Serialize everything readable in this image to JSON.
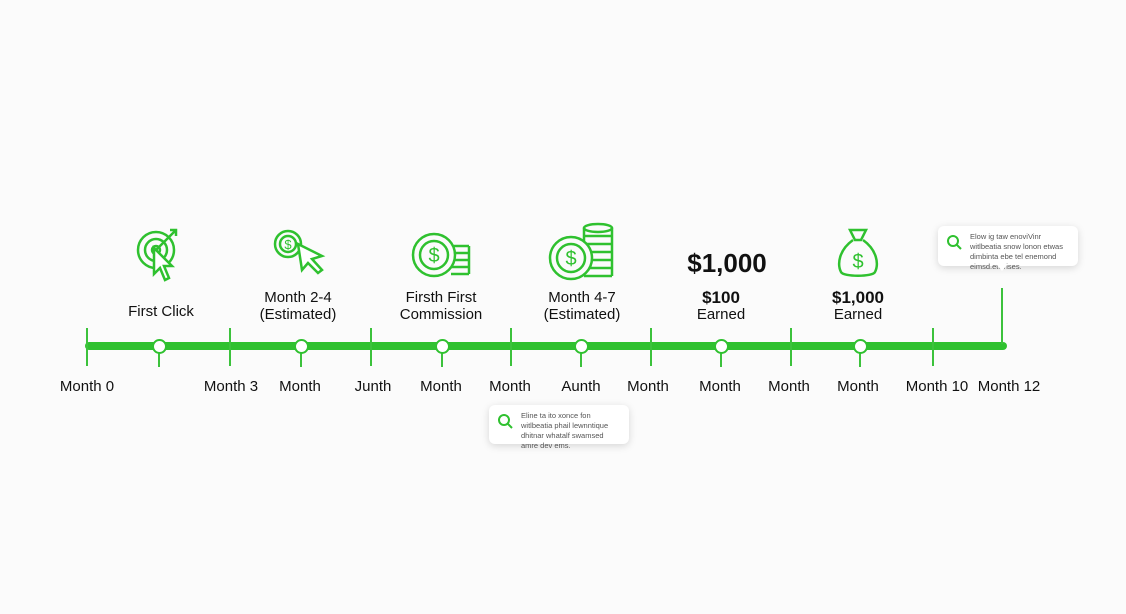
{
  "accent_color": "#2fc12f",
  "milestones": [
    {
      "label_line1": "First Click",
      "label_line2": "",
      "icon": "target-cursor-icon"
    },
    {
      "label_line1": "Month 2-4",
      "label_line2": "(Estimated)",
      "icon": "dollar-cursor-icon"
    },
    {
      "label_line1": "Firsth First",
      "label_line2": "Commission",
      "icon": "coin-stack-icon"
    },
    {
      "label_line1": "Month 4-7",
      "label_line2": "(Estimated)",
      "icon": "coins-stack-icon"
    },
    {
      "amount_big": "$1,000",
      "label_line1": "$100",
      "label_line2": "Earned"
    },
    {
      "label_line1": "$1,000",
      "label_line2": "Earned",
      "icon": "money-bag-icon"
    }
  ],
  "axis_labels": [
    "Month 0",
    "Month 3",
    "Month",
    "Junth",
    "Month",
    "Month",
    "Aunth",
    "Month",
    "Month",
    "Month",
    "Month",
    "Month 10",
    "Month 12"
  ],
  "tooltips": [
    {
      "text": "Elow ig taw enoviVinr witlbeatia snow lonon etwas dimbinta ebe tel enemond eimsd.etwrises.",
      "icon": "search-dollar-icon"
    },
    {
      "text": "Eline ta ito xonce fon witlbeatia phail lewnntique dhitnar whatalf swamsed amre dev ems.",
      "icon": "search-dollar-icon"
    }
  ]
}
